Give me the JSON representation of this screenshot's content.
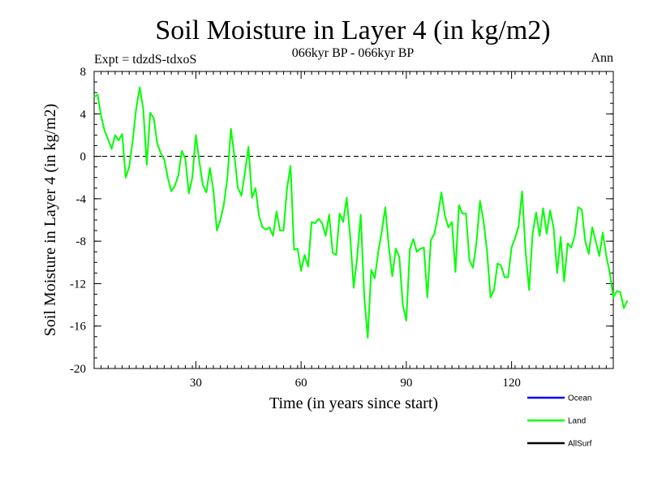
{
  "chart_data": {
    "type": "line",
    "title": "Soil Moisture in Layer 4 (in kg/m2)",
    "subtitle": "066kyr BP - 066kyr BP",
    "experiment": "Expt = tdzdS-tdxoS",
    "season": "Ann",
    "xlabel": "Time (in years since start)",
    "ylabel": "Soil Moisture in Layer 4 (in kg/m2)",
    "xlim": [
      1,
      149
    ],
    "ylim": [
      -20,
      8
    ],
    "xticks": [
      30,
      60,
      90,
      120
    ],
    "yticks": [
      8,
      4,
      0,
      -4,
      -8,
      -12,
      -16,
      -20
    ],
    "zero_line": true,
    "legend": [
      {
        "name": "Ocean",
        "color": "#0000ff"
      },
      {
        "name": "Land",
        "color": "#00ff00"
      },
      {
        "name": "AllSurf",
        "color": "#000000"
      }
    ],
    "series": [
      {
        "name": "Land",
        "color": "#00ff00",
        "x_start": 1,
        "x_step": 1,
        "values": [
          5.6,
          5.8,
          3.8,
          2.4,
          1.6,
          0.7,
          2.0,
          1.5,
          2.1,
          -2.0,
          -1.0,
          1.5,
          4.5,
          6.5,
          4.5,
          -0.8,
          4.1,
          3.6,
          1.2,
          0.3,
          -0.3,
          -2.0,
          -3.3,
          -2.8,
          -1.8,
          0.5,
          -0.2,
          -3.5,
          -2.0,
          2.0,
          -0.5,
          -2.7,
          -3.4,
          -1.1,
          -3.2,
          -7.0,
          -6.0,
          -4.5,
          -2.0,
          2.6,
          0.0,
          -3.0,
          -3.7,
          -1.5,
          0.9,
          -3.9,
          -3.0,
          -5.6,
          -6.7,
          -6.9,
          -6.7,
          -7.5,
          -5.2,
          -7.0,
          -7.0,
          -3.0,
          -0.9,
          -8.8,
          -8.7,
          -10.8,
          -9.3,
          -10.4,
          -6.2,
          -6.3,
          -5.9,
          -6.3,
          -7.5,
          -5.5,
          -9.1,
          -9.3,
          -5.4,
          -6.2,
          -3.9,
          -7.6,
          -12.4,
          -9.5,
          -5.5,
          -13.2,
          -17.1,
          -10.7,
          -11.5,
          -9.0,
          -7.1,
          -4.8,
          -8.5,
          -11.3,
          -8.7,
          -9.5,
          -14.0,
          -15.5,
          -8.8,
          -7.8,
          -9.0,
          -8.7,
          -8.6,
          -13.3,
          -7.9,
          -7.3,
          -5.6,
          -3.4,
          -5.6,
          -6.7,
          -6.2,
          -10.9,
          -4.6,
          -5.4,
          -5.4,
          -9.8,
          -10.5,
          -8.1,
          -4.2,
          -6.1,
          -8.9,
          -13.3,
          -12.6,
          -10.1,
          -10.3,
          -11.4,
          -11.4,
          -8.6,
          -7.7,
          -6.6,
          -3.3,
          -9.0,
          -12.6,
          -7.3,
          -5.3,
          -7.5,
          -4.9,
          -7.3,
          -5.1,
          -6.8,
          -11.0,
          -7.6,
          -11.8,
          -8.2,
          -8.6,
          -7.5,
          -4.8,
          -5.0,
          -8.0,
          -9.2,
          -6.7,
          -8.0,
          -9.4,
          -7.2,
          -9.4,
          -11.0,
          -13.3,
          -12.7,
          -12.8,
          -14.3,
          -13.6
        ]
      }
    ]
  }
}
